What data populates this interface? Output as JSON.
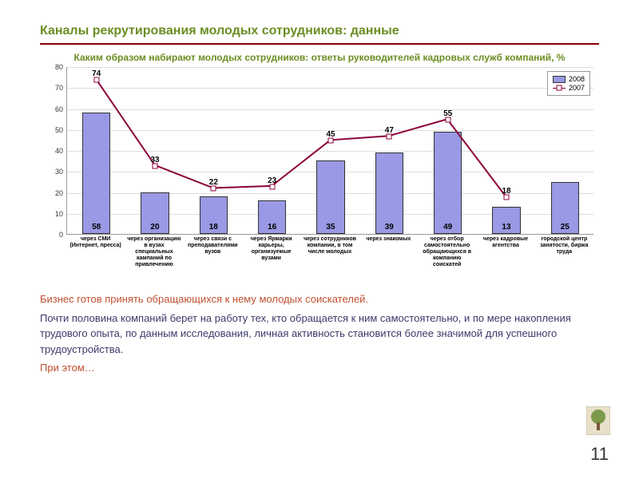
{
  "title": "Каналы рекрутирования молодых сотрудников: данные",
  "subtitle": "Каким образом набирают молодых сотрудников: ответы руководителей кадровых служб компаний, %",
  "chart": {
    "type": "bar+line",
    "ylim": [
      0,
      80
    ],
    "ytick_step": 10,
    "background_color": "#ffffff",
    "grid_color": "#dddddd",
    "bar_color": "#9999e5",
    "bar_border": "#333333",
    "line_color": "#8b003b",
    "categories": [
      "через СМИ (Интернет, пресса)",
      "через организацию в вузах специальных кампаний по привлечению",
      "через связи с преподавателями вузов",
      "через Ярмарки карьеры, организуемые вузами",
      "через сотрудников компании, в том числе молодых",
      "через знакомых",
      "через отбор самостоятельно обращающихся в компанию соискатей",
      "через кадровые агентства",
      "городской центр занятости, биржа труда"
    ],
    "bars_2008": [
      58,
      20,
      18,
      16,
      35,
      39,
      49,
      13,
      25
    ],
    "line_2007": [
      74,
      33,
      22,
      23,
      45,
      47,
      55,
      18,
      null
    ],
    "legend": {
      "series1": "2008",
      "series2": "2007"
    }
  },
  "body": {
    "p1": "Бизнес готов принять обращающихся к нему молодых соискателей.",
    "p2": "Почти половина компаний берет на работу тех, кто обращается к ним самостоятельно, и по мере накопления трудового опыта, по данным исследования, личная активность становится более значимой для успешного трудоустройства.",
    "p3": "При этом…"
  },
  "page_number": "11"
}
